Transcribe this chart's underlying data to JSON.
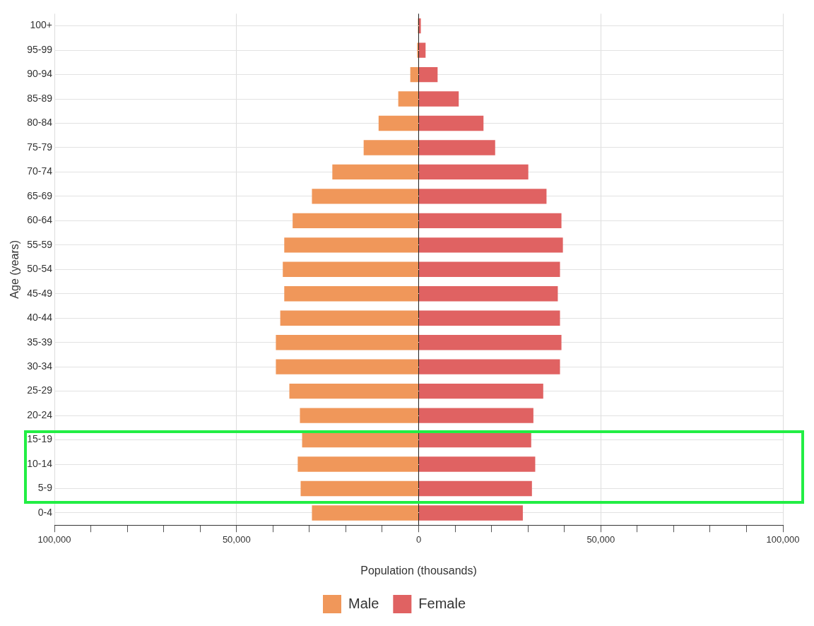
{
  "chart_data": {
    "type": "bar",
    "orientation": "horizontal",
    "stacked": true,
    "xlabel": "Population (thousands)",
    "ylabel": "Age (years)",
    "categories": [
      "100+",
      "95-99",
      "90-94",
      "85-89",
      "80-84",
      "75-79",
      "70-74",
      "65-69",
      "60-64",
      "55-59",
      "50-54",
      "45-49",
      "40-44",
      "35-39",
      "30-34",
      "25-29",
      "20-24",
      "15-19",
      "10-14",
      "5-9",
      "0-4"
    ],
    "series": [
      {
        "name": "Male",
        "color": "#f0975a",
        "values": [
          -200,
          -400,
          -2300,
          -5600,
          -11000,
          -15100,
          -23700,
          -29300,
          -34600,
          -36900,
          -37300,
          -36900,
          -38000,
          -39200,
          -39200,
          -35500,
          -32600,
          -32000,
          -33200,
          -32400,
          -29300
        ]
      },
      {
        "name": "Female",
        "color": "#e06262",
        "values": [
          600,
          1900,
          5200,
          11000,
          17800,
          21000,
          30100,
          35100,
          39200,
          39600,
          38800,
          38200,
          38800,
          39200,
          38800,
          34200,
          31500,
          30900,
          32000,
          31100,
          28600
        ]
      }
    ],
    "xlim": [
      -100000,
      100000
    ],
    "xticks": [
      {
        "value": -100000,
        "label": "100,000"
      },
      {
        "value": -90000,
        "label": null
      },
      {
        "value": -80000,
        "label": null
      },
      {
        "value": -70000,
        "label": null
      },
      {
        "value": -60000,
        "label": null
      },
      {
        "value": -50000,
        "label": "50,000"
      },
      {
        "value": -40000,
        "label": null
      },
      {
        "value": -30000,
        "label": null
      },
      {
        "value": -20000,
        "label": null
      },
      {
        "value": -10000,
        "label": null
      },
      0,
      {
        "value": 10000,
        "label": null
      },
      {
        "value": 20000,
        "label": null
      },
      {
        "value": 30000,
        "label": null
      },
      {
        "value": 40000,
        "label": null
      },
      {
        "value": 50000,
        "label": "50,000"
      },
      {
        "value": 60000,
        "label": null
      },
      {
        "value": 70000,
        "label": null
      },
      {
        "value": 80000,
        "label": null
      },
      {
        "value": 90000,
        "label": null
      },
      {
        "value": 100000,
        "label": "100,000"
      }
    ],
    "grid": true,
    "legend": "bottom"
  }
}
